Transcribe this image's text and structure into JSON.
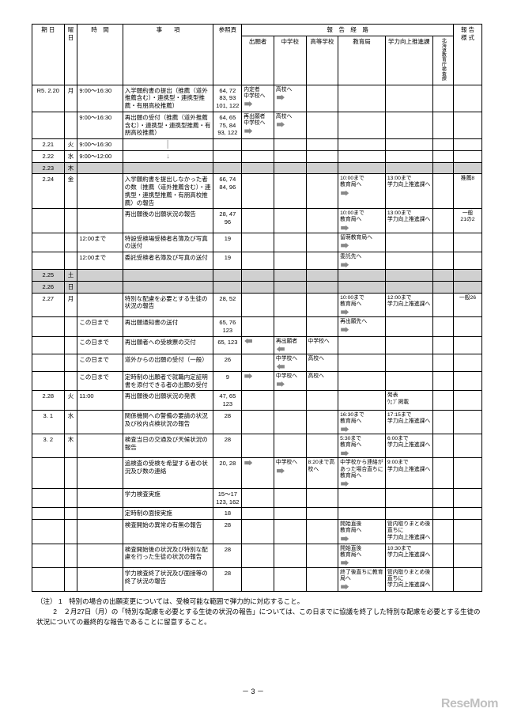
{
  "header": {
    "date": "期 日",
    "day": "曜日",
    "time": "時　間",
    "item": "事　　項",
    "page": "参照頁",
    "route": "報　告　経　路",
    "r1": "出願者",
    "r2": "中学校",
    "r3": "高等学校",
    "r4": "教育局",
    "r5": "学力向上推進課",
    "r6": "北海道教育庁検査課",
    "form": "報 告\n様 式"
  },
  "rows": [
    {
      "date": "R5. 2.20",
      "day": "月",
      "time": "9:00～16:30",
      "item": "入学願約書の提出（推薦（道外推薦含む）・連携型・連携型推薦・有朋高校推薦）",
      "page": "64, 72\n83, 93\n101, 122",
      "r1": "内定者\n中学校へ",
      "r2": "高校へ",
      "arrows12": true,
      "arrows23": true
    },
    {
      "time": "9:00～16:30",
      "item": "再出願の受付（推薦（道外推薦含む）・連携型・連携型推薦・有朋高校推薦）",
      "page": "64, 65\n75, 84\n93, 122",
      "r1": "再出願者\n中学校へ",
      "r2": "高校へ",
      "arrows12": true,
      "arrows23": true
    },
    {
      "date": "2.21",
      "day": "火",
      "time": "9:00～16:30",
      "varrow": true
    },
    {
      "date": "2.22",
      "day": "水",
      "time": "9:00～12:00",
      "varrowEnd": true
    },
    {
      "date": "2.23",
      "day": "木",
      "shaded": true
    },
    {
      "date": "2.24",
      "day": "金",
      "item": "入学願約書を提出しなかった者の数（推薦（道外推薦含む）・連携型・連携型推薦・有朋高校推薦）の報告",
      "page": "66, 74\n84, 96",
      "r4": "10:00まで\n教育局へ",
      "r5": "13:00まで\n学力向上推進課へ",
      "arrows45": true,
      "form": "推薦8"
    },
    {
      "item": "再出願後の出願状況の報告",
      "page": "28, 47\n96",
      "r4": "10:00まで\n教育局へ",
      "r5": "13:00まで\n学力向上推進課へ",
      "arrows45": true,
      "form": "一般\n21の2"
    },
    {
      "time": "12:00まで",
      "item": "特設受検場受検者名簿及び写真の送付",
      "page": "19",
      "r4": "留萌教育局へ",
      "arrowInto4": true
    },
    {
      "time": "12:00まで",
      "item": "委託受検者名簿及び写真の送付",
      "page": "19",
      "r4": "委託先へ",
      "arrowInto4": true
    },
    {
      "date": "2.25",
      "day": "土",
      "shaded": true
    },
    {
      "date": "2.26",
      "day": "日",
      "shaded": true
    },
    {
      "date": "2.27",
      "day": "月",
      "item": "特別な配慮を必要とする生徒の状況の報告",
      "page": "28, 52",
      "r4": "10:00まで\n教育局へ",
      "r5": "12:00まで\n学力向上推進課へ",
      "arrows45": true,
      "form": "一般26"
    },
    {
      "time": "この日まで",
      "item": "再出願通知書の送付",
      "page": "65, 76\n123",
      "r4": "再出願先へ",
      "arrowInto4": true
    },
    {
      "time": "この日まで",
      "item": "再出願者への受検票の交付",
      "page": "65, 123",
      "r2": "再出願者",
      "r3": "中学校へ",
      "arrowsL32": true,
      "arrowsL21": true
    },
    {
      "time": "この日まで",
      "item": "道外からの出願の受付（一般）",
      "page": "26",
      "r2": "中学校へ",
      "r3": "高校へ",
      "arrowsL32": true,
      "arrows23": true
    },
    {
      "time": "この日まで",
      "item": "定時制の出願者で就職内定証明書を添付できる者の出願の受付",
      "page": "9",
      "r2": "中学校へ",
      "r3": "高校へ",
      "arrows12r": true,
      "arrows23": true
    },
    {
      "date": "2.28",
      "day": "火",
      "time": "11:00",
      "item": "再出願後の出願状況の発表",
      "page": "47, 65\n123",
      "r5": "発表\nｳｪﾌﾞ掲載"
    },
    {
      "date": "3. 1",
      "day": "水",
      "item": "関係機関への警備の要請の状況及び校内点検状況の報告",
      "page": "28",
      "r4": "16:30まで\n教育局へ",
      "r5": "17:15まで\n学力向上推進課へ",
      "arrows45": true
    },
    {
      "date": "3. 2",
      "day": "木",
      "item": "検査当日の交通及び天候状況の報告",
      "page": "28",
      "r4": "5:30まで\n教育局へ",
      "r5": "6:00まで\n学力向上推進課へ",
      "arrows45": true
    },
    {
      "item": "追検査の受検を希望する者の状況及び数の連絡",
      "page": "20, 28",
      "r2": "中学校へ",
      "r3": "8:20まで高校へ",
      "r4": "中学校から連絡があった場合直ちに教育局へ",
      "r5": "9:00まで\n学力向上推進課へ",
      "arrows12r": true,
      "arrows23": true,
      "arrows45": true
    },
    {
      "item": "学力検査実施",
      "page": "15～17\n123, 162"
    },
    {
      "item": "定時制の面接実施",
      "page": "18"
    },
    {
      "item": "検査開始の異常の有無の報告",
      "page": "28",
      "r4": "開始直後\n教育局へ",
      "r5": "管内取りまとめ後直ちに\n学力向上推進課へ",
      "arrows45": true
    },
    {
      "item": "検査開始後の状況及び特別な配慮を行った生徒の状況の報告",
      "page": "28",
      "r4": "開始直後\n教育局へ",
      "r5": "10:30まで\n学力向上推進課へ",
      "arrows45": true
    },
    {
      "item": "学力検査終了状況及び面接等の終了状況の報告",
      "page": "28",
      "r4": "終了後直ちに教育局へ",
      "r5": "管内取りまとめ後直ちに\n学力向上推進課へ",
      "arrows45": true
    }
  ],
  "notes": {
    "label": "（注）",
    "n1": "1　特別の場合の出願変更については、受検可能な範囲で弾力的に対応すること。",
    "n2": "2　２月27日（月）の「特別な配慮を必要とする生徒の状況の報告」については、この日までに協議を終了した特別な配慮を必要とする生徒の状況についての最終的な報告であることに留意すること。"
  },
  "pageNum": "－ 3 －",
  "watermark": "ReseMom"
}
